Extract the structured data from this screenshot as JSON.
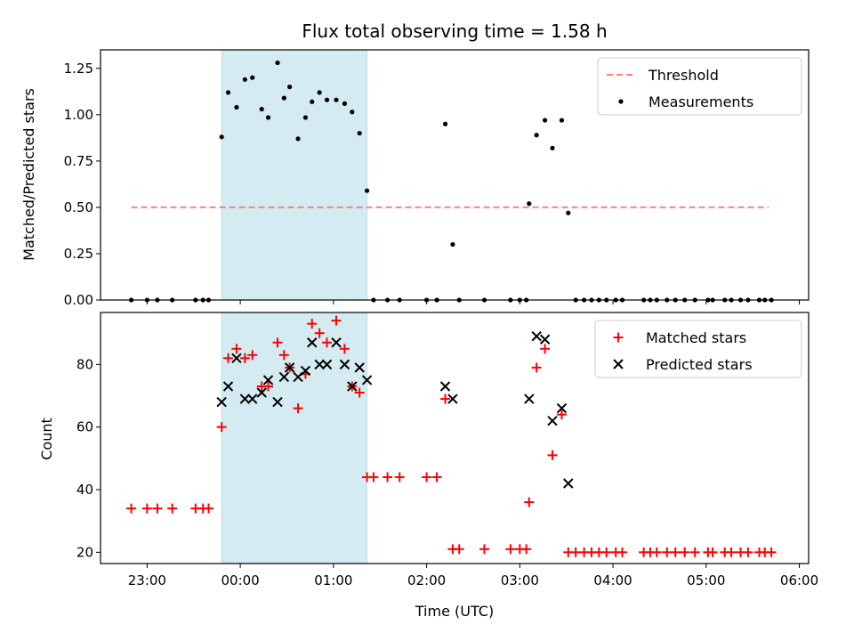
{
  "chart_data": [
    {
      "type": "scatter",
      "title": "Flux total observing time = 1.58 h",
      "xlabel": "",
      "ylabel": "Matched/Predicted stars",
      "x_unit": "hours (UTC, 24 = 00:00 next day)",
      "xlim": [
        22.5,
        30.1
      ],
      "ylim": [
        0,
        1.35
      ],
      "yticks": [
        0.0,
        0.25,
        0.5,
        0.75,
        1.0,
        1.25
      ],
      "ytick_labels": [
        "0.00",
        "0.25",
        "0.50",
        "0.75",
        "1.00",
        "1.25"
      ],
      "highlight_span": [
        23.8,
        25.36
      ],
      "highlight_color": "#d4ebf1",
      "threshold": {
        "name": "Threshold",
        "y": 0.5,
        "x_range": [
          22.83,
          29.67
        ],
        "color": "#ff7f7f"
      },
      "legend": {
        "position": "top-right",
        "entries": [
          "Threshold",
          "Measurements"
        ]
      },
      "series": [
        {
          "name": "Measurements",
          "marker": "dot",
          "color": "#000000",
          "x": [
            22.83,
            23.0,
            23.11,
            23.27,
            23.52,
            23.6,
            23.66,
            23.8,
            23.87,
            23.96,
            24.05,
            24.13,
            24.23,
            24.3,
            24.4,
            24.47,
            24.53,
            24.62,
            24.7,
            24.77,
            24.85,
            24.93,
            25.03,
            25.12,
            25.2,
            25.28,
            25.36,
            25.43,
            25.58,
            25.71,
            26.0,
            26.11,
            26.2,
            26.28,
            26.35,
            26.62,
            26.9,
            27.0,
            27.07,
            27.1,
            27.18,
            27.27,
            27.35,
            27.45,
            27.52,
            27.6,
            27.69,
            27.77,
            27.85,
            27.93,
            28.03,
            28.1,
            28.33,
            28.4,
            28.47,
            28.58,
            28.67,
            28.77,
            28.88,
            29.02,
            29.07,
            29.2,
            29.27,
            29.37,
            29.45,
            29.57,
            29.63,
            29.7
          ],
          "y": [
            0,
            0,
            0,
            0,
            0,
            0,
            0,
            0.88,
            1.12,
            1.04,
            1.19,
            1.2,
            1.03,
            0.985,
            1.28,
            1.09,
            1.15,
            0.87,
            0.985,
            1.07,
            1.12,
            1.08,
            1.08,
            1.06,
            1.015,
            0.9,
            0.59,
            0,
            0,
            0,
            0,
            0,
            0.95,
            0.3,
            0,
            0,
            0,
            0,
            0,
            0.52,
            0.89,
            0.97,
            0.82,
            0.97,
            0.47,
            0,
            0,
            0,
            0,
            0,
            0,
            0,
            0,
            0,
            0,
            0,
            0,
            0,
            0,
            0,
            0,
            0,
            0,
            0,
            0,
            0,
            0,
            0
          ]
        }
      ]
    },
    {
      "type": "scatter",
      "title": "",
      "xlabel": "Time (UTC)",
      "ylabel": "Count",
      "x_unit": "hours (UTC, 24 = 00:00 next day)",
      "xlim": [
        22.5,
        30.1
      ],
      "ylim": [
        16.4,
        96.6
      ],
      "xticks": [
        23,
        24,
        25,
        26,
        27,
        28,
        29,
        30
      ],
      "xtick_labels": [
        "23:00",
        "00:00",
        "01:00",
        "02:00",
        "03:00",
        "04:00",
        "05:00",
        "06:00"
      ],
      "yticks": [
        20,
        40,
        60,
        80
      ],
      "ytick_labels": [
        "20",
        "40",
        "60",
        "80"
      ],
      "highlight_span": [
        23.8,
        25.36
      ],
      "highlight_color": "#d4ebf1",
      "legend": {
        "position": "top-right",
        "entries": [
          "Matched stars",
          "Predicted stars"
        ]
      },
      "series": [
        {
          "name": "Matched stars",
          "marker": "plus",
          "color": "#ff0000",
          "x": [
            22.83,
            23.0,
            23.11,
            23.27,
            23.52,
            23.6,
            23.66,
            23.8,
            23.87,
            23.96,
            24.05,
            24.13,
            24.23,
            24.3,
            24.4,
            24.47,
            24.53,
            24.62,
            24.7,
            24.77,
            24.85,
            24.93,
            25.03,
            25.12,
            25.2,
            25.28,
            25.36,
            25.43,
            25.58,
            25.71,
            26.0,
            26.11,
            26.2,
            26.28,
            26.35,
            26.62,
            26.9,
            27.0,
            27.07,
            27.1,
            27.18,
            27.27,
            27.35,
            27.45,
            27.52,
            27.6,
            27.69,
            27.77,
            27.85,
            27.93,
            28.03,
            28.1,
            28.33,
            28.4,
            28.47,
            28.58,
            28.67,
            28.77,
            28.88,
            29.02,
            29.07,
            29.2,
            29.27,
            29.37,
            29.45,
            29.57,
            29.63,
            29.7
          ],
          "y": [
            34,
            34,
            34,
            34,
            34,
            34,
            34,
            60,
            82,
            85,
            82,
            83,
            73,
            73,
            87,
            83,
            79,
            66,
            77,
            93,
            90,
            87,
            94,
            85,
            73,
            71,
            44,
            44,
            44,
            44,
            44,
            44,
            69,
            21,
            21,
            21,
            21,
            21,
            21,
            36,
            79,
            85,
            51,
            64,
            20,
            20,
            20,
            20,
            20,
            20,
            20,
            20,
            20,
            20,
            20,
            20,
            20,
            20,
            20,
            20,
            20,
            20,
            20,
            20,
            20,
            20,
            20,
            20
          ]
        },
        {
          "name": "Predicted stars",
          "marker": "x",
          "color": "#000000",
          "x": [
            23.8,
            23.87,
            23.96,
            24.05,
            24.13,
            24.23,
            24.3,
            24.4,
            24.47,
            24.53,
            24.62,
            24.7,
            24.77,
            24.85,
            24.93,
            25.03,
            25.12,
            25.2,
            25.28,
            25.36,
            26.2,
            26.28,
            27.1,
            27.18,
            27.27,
            27.35,
            27.45,
            27.52
          ],
          "y": [
            68,
            73,
            82,
            69,
            69,
            71,
            75,
            68,
            76,
            79,
            76,
            78,
            87,
            80,
            80,
            87,
            80,
            73,
            79,
            75,
            73,
            69,
            69,
            89,
            88,
            62,
            66,
            42
          ]
        }
      ]
    }
  ]
}
